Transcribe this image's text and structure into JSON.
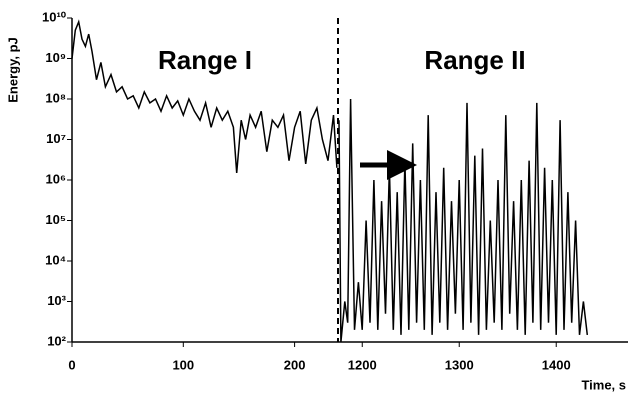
{
  "chart_data": [
    {
      "type": "line",
      "log_scale": true,
      "color": "#000000",
      "ylabel": "Energy, pJ",
      "annotations": [
        "Range I"
      ],
      "xlim": [
        0,
        239
      ],
      "xticks": [
        0,
        100,
        200
      ],
      "ylim": [
        100,
        10000000000.0
      ],
      "yticks": [
        {
          "value": 100,
          "label": "10²"
        },
        {
          "value": 1000,
          "label": "10³"
        },
        {
          "value": 10000,
          "label": "10⁴"
        },
        {
          "value": 100000,
          "label": "10⁵"
        },
        {
          "value": 1000000,
          "label": "10⁶"
        },
        {
          "value": 10000000,
          "label": "10⁷"
        },
        {
          "value": 100000000,
          "label": "10⁸"
        },
        {
          "value": 1000000000,
          "label": "10⁹"
        },
        {
          "value": 10000000000,
          "label": "10¹⁰"
        }
      ],
      "x": [
        0,
        3,
        6,
        9,
        12,
        15,
        18,
        22,
        26,
        30,
        35,
        40,
        45,
        50,
        55,
        60,
        65,
        70,
        75,
        80,
        85,
        90,
        95,
        100,
        105,
        110,
        115,
        120,
        125,
        130,
        135,
        140,
        145,
        148,
        152,
        156,
        160,
        165,
        170,
        175,
        180,
        185,
        190,
        195,
        200,
        205,
        210,
        215,
        220,
        225,
        230,
        235,
        238
      ],
      "values": [
        1000000000.0,
        5000000000.0,
        8000000000.0,
        3000000000.0,
        2000000000.0,
        4000000000.0,
        1500000000.0,
        300000000.0,
        800000000.0,
        200000000.0,
        400000000.0,
        150000000.0,
        200000000.0,
        100000000.0,
        120000000.0,
        60000000.0,
        150000000.0,
        80000000.0,
        100000000.0,
        50000000.0,
        120000000.0,
        60000000.0,
        90000000.0,
        40000000.0,
        100000000.0,
        50000000.0,
        30000000.0,
        80000000.0,
        20000000.0,
        60000000.0,
        30000000.0,
        50000000.0,
        20000000.0,
        1500000.0,
        30000000.0,
        10000000.0,
        40000000.0,
        20000000.0,
        50000000.0,
        5000000.0,
        30000000.0,
        20000000.0,
        40000000.0,
        3000000.0,
        20000000.0,
        50000000.0,
        2500000.0,
        30000000.0,
        60000000.0,
        10000000.0,
        3000000.0,
        40000000.0,
        2000000.0
      ]
    },
    {
      "type": "line",
      "color": "#000000",
      "xlabel": "Time, s",
      "annotations": [
        "Range II"
      ],
      "xlim": [
        1175,
        1474
      ],
      "xticks": [
        1200,
        1300,
        1400
      ],
      "x": [
        1176,
        1178,
        1182,
        1185,
        1188,
        1192,
        1196,
        1200,
        1204,
        1208,
        1212,
        1216,
        1220,
        1224,
        1228,
        1232,
        1236,
        1240,
        1244,
        1248,
        1252,
        1256,
        1260,
        1264,
        1268,
        1272,
        1276,
        1280,
        1284,
        1288,
        1292,
        1296,
        1300,
        1304,
        1308,
        1312,
        1316,
        1320,
        1324,
        1328,
        1332,
        1336,
        1340,
        1344,
        1348,
        1352,
        1356,
        1360,
        1364,
        1368,
        1372,
        1376,
        1380,
        1384,
        1388,
        1392,
        1396,
        1400,
        1404,
        1408,
        1412,
        1416,
        1420,
        1424,
        1428,
        1432
      ],
      "values": [
        30000000.0,
        100,
        1000,
        300,
        100000000.0,
        200,
        3000,
        200,
        100000.0,
        300,
        1000000.0,
        200,
        300000.0,
        500,
        2000000.0,
        200,
        500000.0,
        150,
        3000000.0,
        200,
        8000000.0,
        300,
        1000000.0,
        200,
        40000000.0,
        150,
        500000.0,
        300,
        2000000.0,
        200,
        300000.0,
        500,
        1000000.0,
        200,
        80000000.0,
        300,
        4000000.0,
        150,
        6000000.0,
        200,
        100000.0,
        300,
        1000000.0,
        200,
        40000000.0,
        500,
        300000.0,
        200,
        1000000.0,
        150,
        3000000.0,
        300,
        80000000.0,
        200,
        2000000.0,
        300,
        1000000.0,
        150,
        30000000.0,
        200,
        500000.0,
        300,
        100000.0,
        150,
        1000,
        150
      ]
    }
  ]
}
